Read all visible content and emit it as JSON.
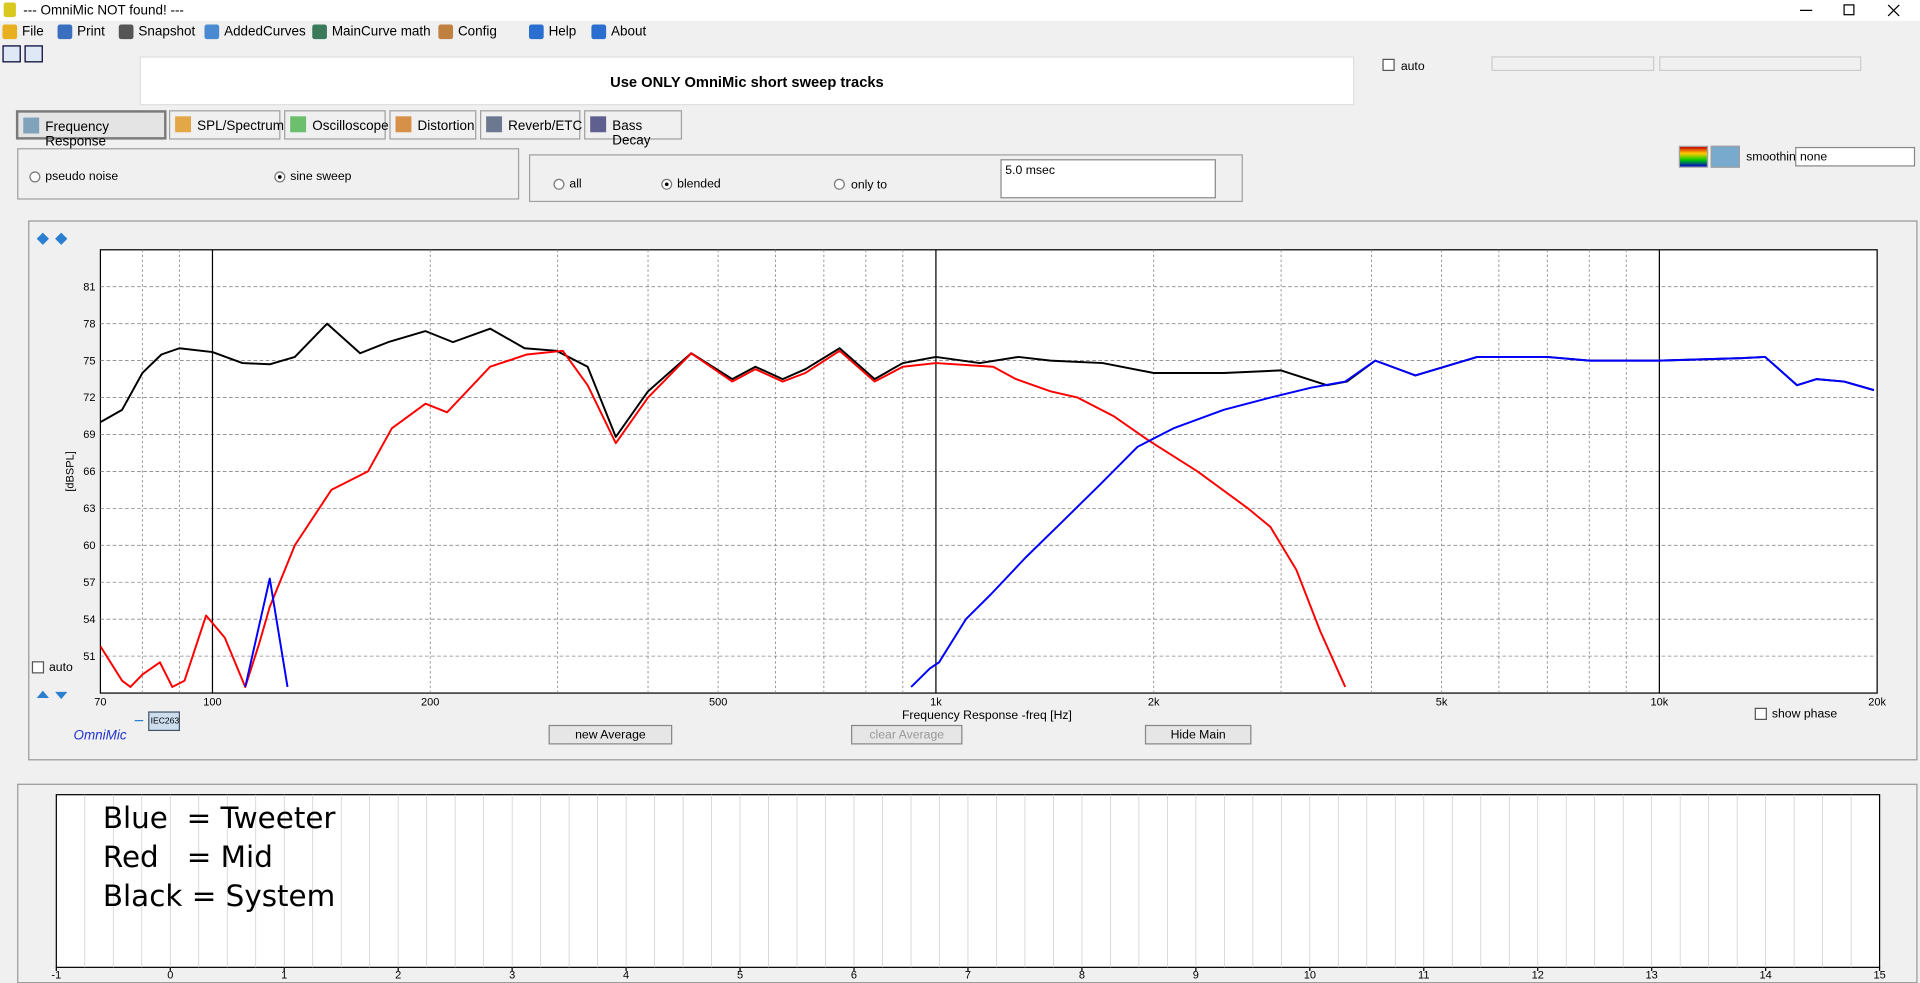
{
  "window": {
    "title": "--- OmniMic NOT found! ---"
  },
  "menu": [
    "File",
    "Print",
    "Snapshot",
    "AddedCurves",
    "MainCurve math",
    "Config",
    "Help",
    "About"
  ],
  "banner": "Use ONLY OmniMic short sweep tracks",
  "auto_label": "auto",
  "tabs": [
    "Frequency Response",
    "SPL/Spectrum",
    "Oscilloscope",
    "Distortion",
    "Reverb/ETC",
    "Bass Decay"
  ],
  "signal_options": [
    "pseudo noise",
    "sine sweep"
  ],
  "gating_options": [
    "all",
    "blended",
    "only to"
  ],
  "gate_time": "5.0 msec",
  "smoothing": {
    "label": "smoothing",
    "value": "none"
  },
  "chart_data": {
    "type": "line",
    "x_label": "Frequency Response -freq [Hz]",
    "y_label": "[dBSPL]",
    "log_x": true,
    "grid": true,
    "xlim": [
      70,
      20000
    ],
    "ylim": [
      48,
      84
    ],
    "xticks": [
      70,
      100,
      200,
      500,
      {
        "value": 1000,
        "label": "1k"
      },
      {
        "value": 2000,
        "label": "2k"
      },
      {
        "value": 5000,
        "label": "5k"
      },
      {
        "value": 10000,
        "label": "10k"
      },
      {
        "value": 20000,
        "label": "20k"
      }
    ],
    "x_minor_ticks": [
      80,
      90,
      300,
      400,
      600,
      700,
      800,
      900,
      3000,
      4000,
      6000,
      7000,
      8000,
      9000
    ],
    "yticks": [
      51,
      54,
      57,
      60,
      63,
      66,
      69,
      72,
      75,
      78,
      81
    ],
    "series": [
      {
        "color": "#000000",
        "x": [
          70,
          75,
          80,
          85,
          90,
          100,
          110,
          120,
          130,
          144,
          160,
          175,
          197,
          215,
          242,
          270,
          299,
          330,
          361,
          400,
          459,
          523,
          563,
          614,
          660,
          736,
          823,
          900,
          1000,
          1150,
          1300,
          1440,
          1700,
          2000,
          2500,
          3000,
          3470,
          3700,
          4050,
          4600,
          5600,
          7000,
          8000,
          10000,
          13000,
          14000,
          15500,
          16500,
          18000,
          19800
        ],
        "values": [
          70,
          71,
          74,
          75.5,
          76,
          75.7,
          74.8,
          74.7,
          75.3,
          78,
          75.6,
          76.5,
          77.4,
          76.5,
          77.6,
          76,
          75.8,
          74.5,
          68.8,
          72.5,
          75.6,
          73.5,
          74.5,
          73.5,
          74.3,
          76,
          73.5,
          74.8,
          75.3,
          74.8,
          75.3,
          75,
          74.8,
          74,
          74,
          74.2,
          73,
          73.3,
          75,
          73.8,
          75.3,
          75.3,
          75,
          75,
          75.2,
          75.3,
          73,
          73.5,
          73.3,
          72.6
        ]
      },
      {
        "color": "#ff0000",
        "x": [
          70,
          75,
          77,
          80,
          84.6,
          88,
          91.5,
          98,
          104,
          111,
          116,
          120,
          130,
          146,
          164,
          177,
          197,
          211,
          242,
          272,
          305,
          330,
          361,
          400,
          459,
          523,
          563,
          614,
          660,
          736,
          823,
          900,
          1000,
          1200,
          1290,
          1440,
          1570,
          1760,
          1970,
          2300,
          2700,
          2900,
          3150,
          3400,
          3680
        ],
        "values": [
          51.8,
          49,
          48.5,
          49.5,
          50.5,
          48.5,
          49,
          54.3,
          52.5,
          48.5,
          52,
          55,
          60,
          64.5,
          66,
          69.5,
          71.5,
          70.8,
          74.5,
          75.5,
          75.8,
          73,
          68.3,
          72,
          75.6,
          73.3,
          74.3,
          73.3,
          74,
          75.8,
          73.3,
          74.5,
          74.8,
          74.5,
          73.5,
          72.5,
          72,
          70.5,
          68.5,
          66,
          63,
          61.5,
          58,
          53,
          48.5
        ]
      },
      {
        "color": "#0000ff",
        "x": [
          111,
          120,
          127,
          500,
          924,
          981,
          1010,
          1100,
          1190,
          1330,
          1500,
          1690,
          1900,
          2130,
          2500,
          2900,
          3300,
          3680,
          4050,
          4600,
          5600,
          7000,
          8000,
          10000,
          13000,
          14000,
          15500,
          16500,
          18000,
          19800
        ],
        "values": [
          48.5,
          57.3,
          48.5,
          null,
          48.5,
          50,
          50.5,
          54,
          56,
          59,
          62,
          65,
          68,
          69.5,
          71,
          72,
          72.8,
          73.3,
          75,
          73.8,
          75.3,
          75.3,
          75,
          75,
          75.2,
          75.3,
          73,
          73.5,
          73.3,
          72.6
        ]
      }
    ]
  },
  "chart_controls": {
    "auto": "auto",
    "mic": "OmniMic",
    "mic_cal": "IEC263",
    "buttons": [
      "new Average",
      "clear Average",
      "Hide Main"
    ],
    "show_phase": "show phase"
  },
  "notes_panel": {
    "lines": [
      "Blue  = Tweeter",
      "Red   = Mid",
      "Black = System"
    ],
    "xlim": [
      -1,
      15
    ],
    "xticks": [
      -1,
      0,
      1,
      2,
      3,
      4,
      5,
      6,
      7,
      8,
      9,
      10,
      11,
      12,
      13,
      14,
      15
    ]
  }
}
